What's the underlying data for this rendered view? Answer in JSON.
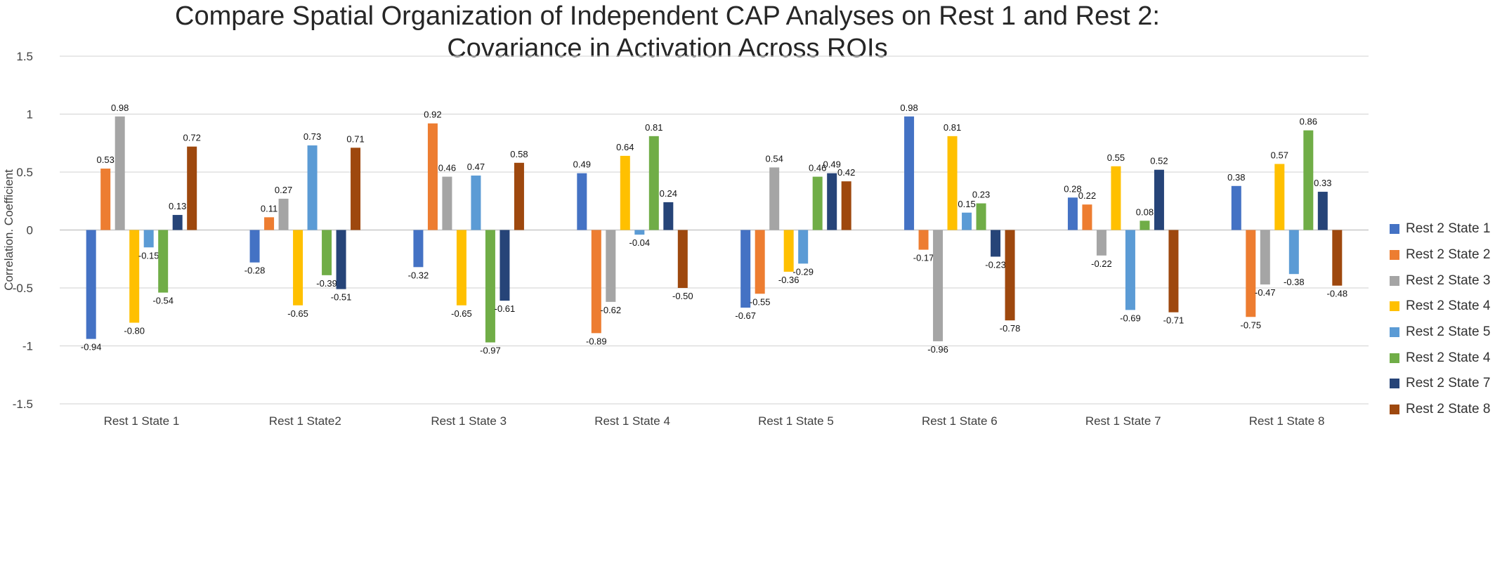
{
  "chart_data": {
    "type": "bar",
    "title": "Compare Spatial Organization of Independent CAP Analyses on Rest 1 and Rest 2:",
    "subtitle": "Covariance in Activation Across ROIs",
    "xlabel": "",
    "ylabel": "Correlation. Coefficient",
    "ylim": [
      -1.5,
      1.5
    ],
    "yticks": [
      "-1.5",
      "-1",
      "-0.5",
      "0",
      "0.5",
      "1",
      "1.5"
    ],
    "grid": true,
    "legend_position": "right",
    "categories": [
      "Rest 1 State 1",
      "Rest 1 State2",
      "Rest 1 State 3",
      "Rest 1 State 4",
      "Rest 1 State 5",
      "Rest 1 State 6",
      "Rest 1 State 7",
      "Rest 1 State 8"
    ],
    "series": [
      {
        "name": "Rest 2 State 1",
        "color": "#4472C4",
        "values": [
          -0.94,
          -0.28,
          -0.32,
          0.49,
          -0.67,
          0.98,
          0.28,
          0.38
        ],
        "labels": [
          "-0.94",
          "-0.28",
          "-0.32",
          "0.49",
          "-0.67",
          "0.98",
          "0.28",
          "0.38"
        ]
      },
      {
        "name": "Rest 2 State 2",
        "color": "#ED7D31",
        "values": [
          0.53,
          0.11,
          0.92,
          -0.89,
          -0.55,
          -0.17,
          0.22,
          -0.75
        ],
        "labels": [
          "0.53",
          "0.11",
          "0.92",
          "-0.89",
          "-0.55",
          "-0.17",
          "0.22",
          "-0.75"
        ]
      },
      {
        "name": "Rest 2 State 3",
        "color": "#A5A5A5",
        "values": [
          0.98,
          0.27,
          0.46,
          -0.62,
          0.54,
          -0.96,
          -0.22,
          -0.47
        ],
        "labels": [
          "0.98",
          "0.27",
          "0.46",
          "-0.62",
          "0.54",
          "-0.96",
          "-0.22",
          "-0.47"
        ]
      },
      {
        "name": "Rest 2 State 4",
        "color": "#FFC000",
        "values": [
          -0.8,
          -0.65,
          -0.65,
          0.64,
          -0.36,
          0.81,
          0.55,
          0.57
        ],
        "labels": [
          "-0.80",
          "-0.65",
          "-0.65",
          "0.64",
          "-0.36",
          "0.81",
          "0.55",
          "0.57"
        ]
      },
      {
        "name": "Rest 2 State 5",
        "color": "#5B9BD5",
        "values": [
          -0.15,
          0.73,
          0.47,
          -0.04,
          -0.29,
          0.15,
          -0.69,
          -0.38
        ],
        "labels": [
          "-0.15",
          "0.73",
          "0.47",
          "-0.04",
          "-0.29",
          "0.15",
          "-0.69",
          "-0.38"
        ]
      },
      {
        "name": "Rest 2 State 4",
        "color": "#70AD47",
        "values": [
          -0.54,
          -0.39,
          -0.97,
          0.81,
          0.46,
          0.23,
          0.08,
          0.86
        ],
        "labels": [
          "-0.54",
          "-0.39",
          "-0.97",
          "0.81",
          "0.46",
          "0.23",
          "0.08",
          "0.86"
        ]
      },
      {
        "name": "Rest 2 State 7",
        "color": "#264478",
        "values": [
          0.13,
          -0.51,
          -0.61,
          0.24,
          0.49,
          -0.23,
          0.52,
          0.33
        ],
        "labels": [
          "0.13",
          "-0.51",
          "-0.61",
          "0.24",
          "0.49",
          "-0.23",
          "0.52",
          "0.33"
        ]
      },
      {
        "name": "Rest 2 State 8",
        "color": "#9E480E",
        "values": [
          0.72,
          0.71,
          0.58,
          -0.5,
          0.42,
          -0.78,
          -0.71,
          -0.48
        ],
        "labels": [
          "0.72",
          "0.71",
          "0.58",
          "-0.50",
          "0.42",
          "-0.78",
          "-0.71",
          "-0.48"
        ]
      }
    ]
  }
}
